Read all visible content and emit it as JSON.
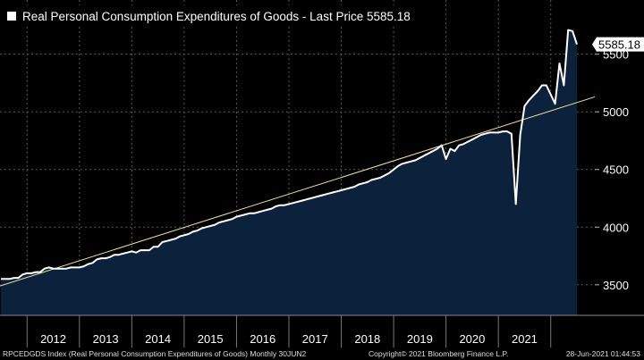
{
  "legend": {
    "label": "Real Personal Consumption Expenditures of Goods - Last Price 5585.18"
  },
  "footer": {
    "left": "RPCEDGDS Index (Real Personal Consumption Expenditures of Goods)  Monthly 30JUN2",
    "middle": "Copyright© 2021 Bloomberg Finance L.P.",
    "right": "28-Jun-2021 01:44:53"
  },
  "colors": {
    "background": "#000000",
    "area_fill": "#0c213c",
    "line": "#ffffff",
    "trend": "#f0e39a",
    "grid": "#5a5a5a",
    "last_price_box": "#ffffff"
  },
  "chart_data": {
    "type": "area",
    "title": "Real Personal Consumption Expenditures of Goods",
    "x_start": "2011-07",
    "frequency": "monthly",
    "x_tick_labels": [
      "2012",
      "2013",
      "2014",
      "2015",
      "2016",
      "2017",
      "2018",
      "2019",
      "2020",
      "2021"
    ],
    "y_ticks": [
      3500,
      4000,
      4500,
      5000,
      5500
    ],
    "ylim": [
      3235,
      5970
    ],
    "last_price_label": "5585.18",
    "series": [
      {
        "name": "RPCEDGDS Index",
        "values": [
          3550,
          3550,
          3550,
          3560,
          3560,
          3590,
          3600,
          3600,
          3610,
          3610,
          3640,
          3650,
          3640,
          3640,
          3640,
          3640,
          3650,
          3650,
          3650,
          3660,
          3680,
          3690,
          3720,
          3730,
          3730,
          3740,
          3760,
          3760,
          3770,
          3780,
          3790,
          3780,
          3800,
          3800,
          3800,
          3830,
          3830,
          3870,
          3880,
          3890,
          3900,
          3920,
          3930,
          3940,
          3960,
          3970,
          3990,
          4000,
          4010,
          4020,
          4040,
          4050,
          4060,
          4070,
          4090,
          4100,
          4110,
          4120,
          4120,
          4130,
          4140,
          4150,
          4160,
          4180,
          4190,
          4190,
          4200,
          4210,
          4220,
          4230,
          4240,
          4250,
          4260,
          4270,
          4280,
          4290,
          4300,
          4310,
          4320,
          4330,
          4340,
          4350,
          4370,
          4380,
          4390,
          4410,
          4420,
          4430,
          4450,
          4470,
          4500,
          4530,
          4550,
          4560,
          4570,
          4580,
          4600,
          4620,
          4640,
          4660,
          4680,
          4710,
          4590,
          4680,
          4660,
          4710,
          4720,
          4740,
          4760,
          4780,
          4800,
          4810,
          4820,
          4820,
          4820,
          4830,
          4830,
          4810,
          4200,
          4800,
          5050,
          5100,
          5140,
          5180,
          5230,
          5230,
          5150,
          5070,
          5420,
          5230,
          5710,
          5700,
          5585.18
        ]
      },
      {
        "name": "Trend",
        "values_endpoints": [
          3490,
          5130
        ]
      }
    ],
    "xlabel": "",
    "ylabel": ""
  }
}
